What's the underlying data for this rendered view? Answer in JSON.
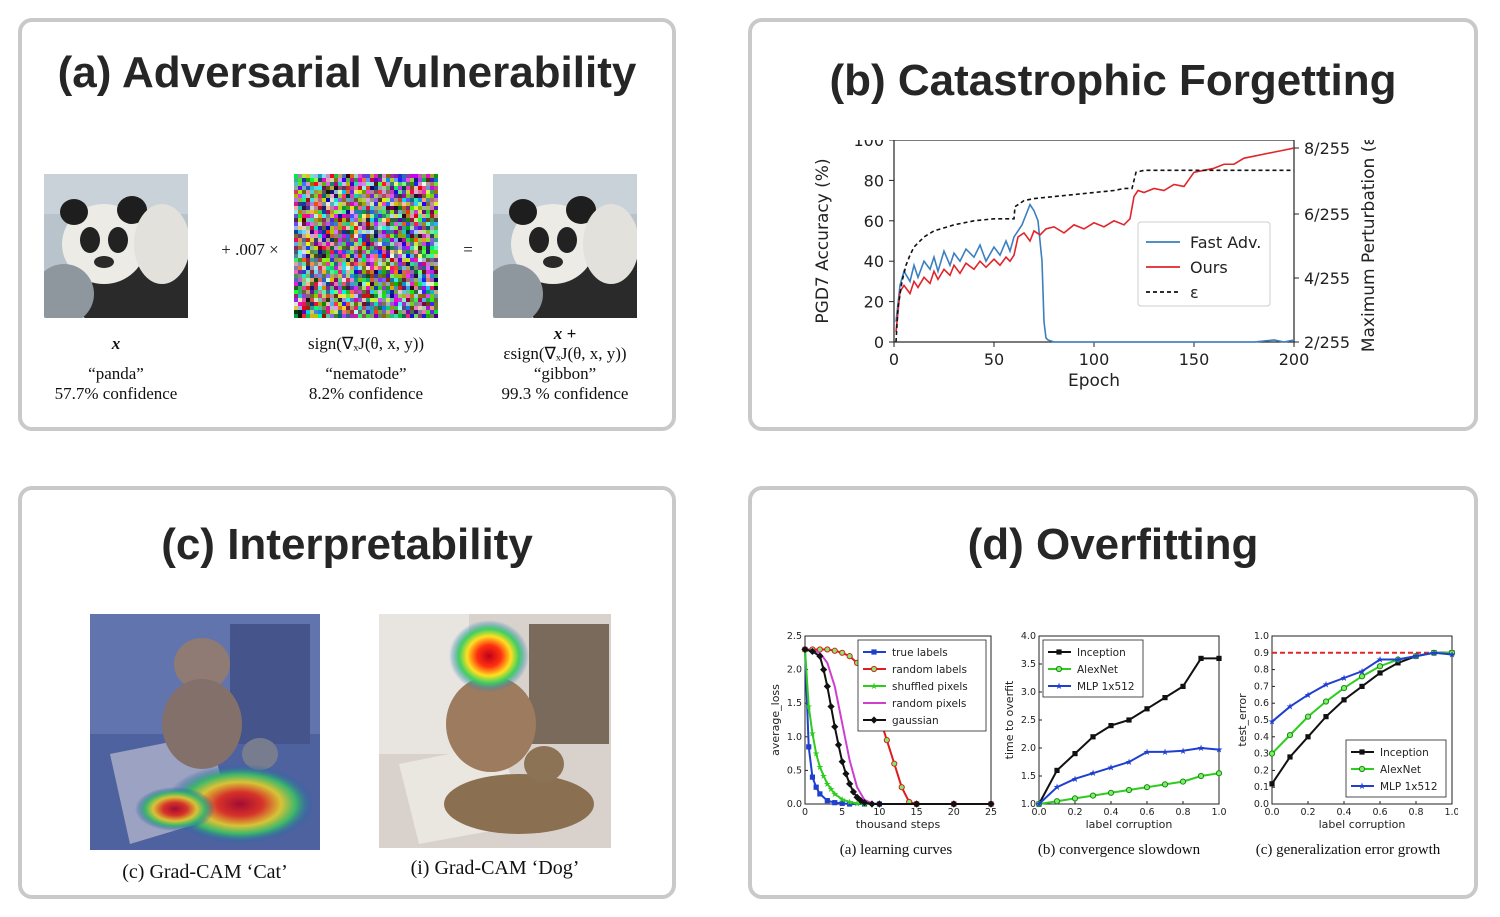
{
  "panels": {
    "a": {
      "title": "(a) Adversarial Vulnerability",
      "plus_label": "+ .007 ×",
      "equals_label": "=",
      "images": [
        {
          "symbol": "x",
          "caption_line1": "“panda”",
          "caption_line2": "57.7% confidence"
        },
        {
          "symbol": "sign(∇ₓJ(θ, x, y))",
          "caption_line1": "“nematode”",
          "caption_line2": "8.2% confidence"
        },
        {
          "symbol_line1": "x +",
          "symbol_line2": "εsign(∇ₓJ(θ, x, y))",
          "caption_line1": "“gibbon”",
          "caption_line2": "99.3 % confidence"
        }
      ]
    },
    "b": {
      "title": "(b) Catastrophic Forgetting"
    },
    "c": {
      "title": "(c) Interpretability",
      "captions": [
        "(c) Grad-CAM ‘Cat’",
        "(i) Grad-CAM ‘Dog’"
      ]
    },
    "d": {
      "title": "(d) Overfitting",
      "subcaptions": [
        "(a) learning curves",
        "(b) convergence slowdown",
        "(c) generalization error growth"
      ]
    }
  },
  "chart_data": [
    {
      "type": "line",
      "id": "catastrophic-forgetting",
      "xlabel": "Epoch",
      "ylabel": "PGD7 Accuracy (%)",
      "ylabel_right": "Maximum Perturbation (ε)",
      "xlim": [
        0,
        200
      ],
      "ylim": [
        0,
        100
      ],
      "xticks": [
        0,
        50,
        100,
        150,
        200
      ],
      "yticks": [
        0,
        20,
        40,
        60,
        80,
        100
      ],
      "yticks_right": [
        "2/255",
        "4/255",
        "6/255",
        "8/255"
      ],
      "legend": [
        "Fast Adv.",
        "Ours",
        "ε"
      ],
      "series": [
        {
          "name": "Fast Adv.",
          "color": "#3a7fbf",
          "x": [
            1,
            3,
            5,
            8,
            10,
            12,
            15,
            18,
            20,
            22,
            25,
            28,
            30,
            33,
            36,
            40,
            43,
            46,
            50,
            53,
            56,
            58,
            60,
            62,
            64,
            66,
            68,
            70,
            72,
            74,
            75,
            76,
            77,
            80,
            90,
            100,
            110,
            120,
            130,
            140,
            150,
            160,
            170,
            180,
            190,
            195,
            200
          ],
          "y": [
            10,
            28,
            35,
            30,
            38,
            32,
            40,
            36,
            42,
            35,
            45,
            38,
            44,
            40,
            46,
            42,
            48,
            40,
            47,
            43,
            50,
            45,
            52,
            55,
            58,
            63,
            68,
            65,
            60,
            40,
            10,
            2,
            1,
            0,
            0,
            0,
            0,
            0,
            0,
            0,
            0,
            0,
            0,
            0,
            1,
            0,
            1
          ]
        },
        {
          "name": "Ours",
          "color": "#e0252b",
          "x": [
            1,
            3,
            5,
            8,
            10,
            12,
            15,
            18,
            20,
            22,
            25,
            28,
            30,
            33,
            36,
            40,
            43,
            46,
            50,
            53,
            56,
            58,
            60,
            62,
            65,
            68,
            70,
            73,
            76,
            80,
            85,
            90,
            95,
            100,
            105,
            110,
            115,
            118,
            120,
            122,
            125,
            130,
            135,
            140,
            145,
            150,
            155,
            160,
            165,
            170,
            175,
            180,
            185,
            190,
            195,
            200
          ],
          "y": [
            5,
            25,
            28,
            24,
            30,
            27,
            32,
            29,
            35,
            31,
            36,
            33,
            38,
            34,
            39,
            36,
            40,
            37,
            41,
            38,
            42,
            40,
            43,
            52,
            54,
            50,
            55,
            53,
            56,
            57,
            54,
            58,
            56,
            59,
            57,
            60,
            58,
            61,
            72,
            75,
            74,
            76,
            75,
            78,
            77,
            84,
            85,
            86,
            88,
            88,
            91,
            92,
            93,
            94,
            95,
            96
          ]
        },
        {
          "name": "ε",
          "color": "#111111",
          "dash": true,
          "x": [
            1,
            2,
            4,
            6,
            8,
            10,
            15,
            20,
            30,
            40,
            50,
            55,
            60,
            60.5,
            65,
            70,
            80,
            90,
            100,
            110,
            115,
            119,
            120,
            121,
            125,
            130,
            140,
            150,
            160,
            170,
            180,
            190,
            200
          ],
          "y": [
            0,
            17,
            30,
            38,
            43,
            47,
            52,
            55,
            58,
            60,
            61,
            61,
            61,
            67,
            70,
            71,
            72,
            73,
            74,
            75,
            76,
            76,
            80,
            84,
            85,
            85,
            85,
            85,
            85,
            85,
            85,
            85,
            85
          ]
        }
      ]
    },
    {
      "type": "line",
      "id": "learning-curves",
      "xlabel": "thousand steps",
      "ylabel": "average_loss",
      "xlim": [
        0,
        25
      ],
      "ylim": [
        0,
        2.5
      ],
      "xticks": [
        0,
        5,
        10,
        15,
        20,
        25
      ],
      "yticks": [
        0.0,
        0.5,
        1.0,
        1.5,
        2.0,
        2.5
      ],
      "series": [
        {
          "name": "true labels",
          "color": "#1f3fcf",
          "marker": "square",
          "x": [
            0,
            0.5,
            1,
            1.5,
            2,
            3,
            4,
            5,
            6,
            8,
            10,
            15,
            20,
            25
          ],
          "y": [
            2.3,
            0.85,
            0.4,
            0.25,
            0.15,
            0.05,
            0.02,
            0.01,
            0,
            0,
            0,
            0,
            0,
            0
          ]
        },
        {
          "name": "random labels",
          "color": "#d9201e",
          "marker": "circle",
          "x": [
            0,
            1,
            2,
            3,
            4,
            5,
            6,
            7,
            8,
            9,
            10,
            11,
            12,
            13,
            14,
            15,
            20,
            25
          ],
          "y": [
            2.3,
            2.3,
            2.3,
            2.3,
            2.28,
            2.25,
            2.2,
            2.1,
            1.9,
            1.65,
            1.3,
            0.95,
            0.6,
            0.25,
            0.03,
            0,
            0,
            0
          ]
        },
        {
          "name": "shuffled pixels",
          "color": "#2ecc1f",
          "marker": "star",
          "x": [
            0,
            0.5,
            1,
            1.5,
            2,
            2.5,
            3,
            3.5,
            4,
            5,
            6,
            7,
            8,
            10,
            15,
            20,
            25
          ],
          "y": [
            2.3,
            1.45,
            1.05,
            0.75,
            0.55,
            0.42,
            0.3,
            0.22,
            0.15,
            0.07,
            0.03,
            0.01,
            0,
            0,
            0,
            0,
            0
          ]
        },
        {
          "name": "random pixels",
          "color": "#cf3fcf",
          "marker": "none",
          "x": [
            0,
            1,
            2,
            3,
            4,
            5,
            6,
            7,
            8,
            9,
            10,
            15,
            20,
            25
          ],
          "y": [
            2.3,
            2.29,
            2.25,
            2.1,
            1.75,
            1.2,
            0.65,
            0.25,
            0.06,
            0.01,
            0,
            0,
            0,
            0
          ]
        },
        {
          "name": "gaussian",
          "color": "#111111",
          "marker": "diamond",
          "x": [
            0,
            1,
            2,
            2.5,
            3,
            3.5,
            4,
            4.5,
            5,
            5.5,
            6,
            6.5,
            7,
            7.5,
            8,
            9,
            10,
            15,
            20,
            25
          ],
          "y": [
            2.3,
            2.27,
            2.2,
            2.0,
            1.75,
            1.45,
            1.15,
            0.88,
            0.63,
            0.45,
            0.3,
            0.18,
            0.1,
            0.05,
            0.02,
            0,
            0,
            0,
            0,
            0
          ]
        }
      ]
    },
    {
      "type": "line",
      "id": "convergence-slowdown",
      "xlabel": "label corruption",
      "ylabel": "time to overfit",
      "xlim": [
        0,
        1
      ],
      "ylim": [
        1,
        4
      ],
      "xticks": [
        0.0,
        0.2,
        0.4,
        0.6,
        0.8,
        1.0
      ],
      "yticks": [
        1.0,
        1.5,
        2.0,
        2.5,
        3.0,
        3.5,
        4.0
      ],
      "series": [
        {
          "name": "Inception",
          "color": "#111111",
          "marker": "square",
          "x": [
            0,
            0.1,
            0.2,
            0.3,
            0.4,
            0.5,
            0.6,
            0.7,
            0.8,
            0.9,
            1.0
          ],
          "y": [
            1.0,
            1.6,
            1.9,
            2.2,
            2.4,
            2.5,
            2.7,
            2.9,
            3.1,
            3.6,
            3.6
          ]
        },
        {
          "name": "AlexNet",
          "color": "#2ecc1f",
          "marker": "circle",
          "x": [
            0,
            0.1,
            0.2,
            0.3,
            0.4,
            0.5,
            0.6,
            0.7,
            0.8,
            0.9,
            1.0
          ],
          "y": [
            1.0,
            1.05,
            1.1,
            1.15,
            1.2,
            1.25,
            1.3,
            1.35,
            1.4,
            1.5,
            1.55
          ]
        },
        {
          "name": "MLP 1x512",
          "color": "#1f3fcf",
          "marker": "star",
          "x": [
            0,
            0.1,
            0.2,
            0.3,
            0.4,
            0.5,
            0.6,
            0.7,
            0.8,
            0.9,
            1.0
          ],
          "y": [
            1.0,
            1.3,
            1.45,
            1.55,
            1.65,
            1.75,
            1.93,
            1.93,
            1.95,
            2.0,
            1.97
          ]
        }
      ]
    },
    {
      "type": "line",
      "id": "generalization-error-growth",
      "xlabel": "label corruption",
      "ylabel": "test_error",
      "xlim": [
        0,
        1
      ],
      "ylim": [
        0,
        1
      ],
      "xticks": [
        0.0,
        0.2,
        0.4,
        0.6,
        0.8,
        1.0
      ],
      "yticks": [
        0.0,
        0.1,
        0.2,
        0.3,
        0.4,
        0.5,
        0.6,
        0.7,
        0.8,
        0.9,
        1.0
      ],
      "reference_line": {
        "y": 0.9,
        "color": "#e0252b"
      },
      "series": [
        {
          "name": "Inception",
          "color": "#111111",
          "marker": "square",
          "x": [
            0,
            0.1,
            0.2,
            0.3,
            0.4,
            0.5,
            0.6,
            0.7,
            0.8,
            0.9,
            1.0
          ],
          "y": [
            0.12,
            0.28,
            0.4,
            0.52,
            0.62,
            0.7,
            0.78,
            0.84,
            0.88,
            0.9,
            0.9
          ]
        },
        {
          "name": "AlexNet",
          "color": "#2ecc1f",
          "marker": "circle",
          "x": [
            0,
            0.1,
            0.2,
            0.3,
            0.4,
            0.5,
            0.6,
            0.7,
            0.8,
            0.9,
            1.0
          ],
          "y": [
            0.3,
            0.41,
            0.52,
            0.61,
            0.69,
            0.76,
            0.82,
            0.86,
            0.88,
            0.9,
            0.9
          ]
        },
        {
          "name": "MLP 1x512",
          "color": "#1f3fcf",
          "marker": "star",
          "x": [
            0,
            0.1,
            0.2,
            0.3,
            0.4,
            0.5,
            0.6,
            0.7,
            0.8,
            0.9,
            1.0
          ],
          "y": [
            0.49,
            0.58,
            0.65,
            0.71,
            0.75,
            0.79,
            0.86,
            0.86,
            0.88,
            0.9,
            0.89
          ]
        }
      ]
    }
  ]
}
